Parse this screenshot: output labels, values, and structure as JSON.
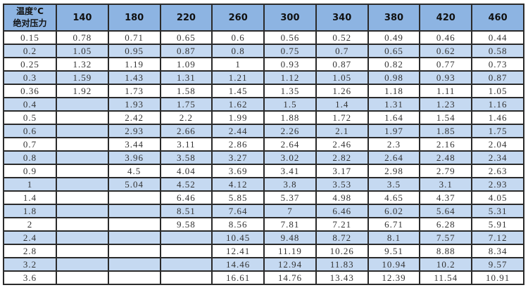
{
  "table": {
    "corner_label_line1": "温度°C",
    "corner_label_line2": "绝对压力",
    "columns": [
      "140",
      "180",
      "220",
      "260",
      "300",
      "340",
      "380",
      "420",
      "460"
    ],
    "header_color": "#8db4e2",
    "alt_row_color": "#c5d9f1",
    "rows": [
      {
        "pressure": "0.15",
        "values": [
          "0.78",
          "0.71",
          "0.65",
          "0.6",
          "0.56",
          "0.52",
          "0.49",
          "0.46",
          "0.44"
        ]
      },
      {
        "pressure": "0.2",
        "values": [
          "1.05",
          "0.95",
          "0.87",
          "0.8",
          "0.75",
          "0.7",
          "0.65",
          "0.62",
          "0.58"
        ]
      },
      {
        "pressure": "0.25",
        "values": [
          "1.32",
          "1.19",
          "1.09",
          "1",
          "0.93",
          "0.87",
          "0.82",
          "0.77",
          "0.73"
        ]
      },
      {
        "pressure": "0.3",
        "values": [
          "1.59",
          "1.43",
          "1.31",
          "1.21",
          "1.12",
          "1.05",
          "0.98",
          "0.93",
          "0.87"
        ]
      },
      {
        "pressure": "0.36",
        "values": [
          "1.92",
          "1.73",
          "1.58",
          "1.45",
          "1.35",
          "1.26",
          "1.18",
          "1.11",
          "1.05"
        ]
      },
      {
        "pressure": "0.4",
        "values": [
          "",
          "1.93",
          "1.75",
          "1.62",
          "1.5",
          "1.4",
          "1.31",
          "1.23",
          "1.16"
        ]
      },
      {
        "pressure": "0.5",
        "values": [
          "",
          "2.42",
          "2.2",
          "1.99",
          "1.88",
          "1.72",
          "1.64",
          "1.54",
          "1.46"
        ]
      },
      {
        "pressure": "0.6",
        "values": [
          "",
          "2.93",
          "2.66",
          "2.44",
          "2.26",
          "2.1",
          "1.97",
          "1.85",
          "1.75"
        ]
      },
      {
        "pressure": "0.7",
        "values": [
          "",
          "3.44",
          "3.11",
          "2.86",
          "2.64",
          "2.46",
          "2.3",
          "2.16",
          "2.04"
        ]
      },
      {
        "pressure": "0.8",
        "values": [
          "",
          "3.96",
          "3.58",
          "3.27",
          "3.02",
          "2.82",
          "2.64",
          "2.48",
          "2.34"
        ]
      },
      {
        "pressure": "0.9",
        "values": [
          "",
          "4.5",
          "4.04",
          "3.69",
          "3.41",
          "3.17",
          "2.98",
          "2.79",
          "2.63"
        ]
      },
      {
        "pressure": "1",
        "values": [
          "",
          "5.04",
          "4.52",
          "4.12",
          "3.8",
          "3.53",
          "3.5",
          "3.1",
          "2.93"
        ]
      },
      {
        "pressure": "1.4",
        "values": [
          "",
          "",
          "6.46",
          "5.85",
          "5.37",
          "4.98",
          "4.65",
          "4.37",
          "4.05"
        ]
      },
      {
        "pressure": "1.8",
        "values": [
          "",
          "",
          "8.51",
          "7.64",
          "7",
          "6.46",
          "6.02",
          "5.64",
          "5.31"
        ]
      },
      {
        "pressure": "2",
        "values": [
          "",
          "",
          "9.58",
          "8.56",
          "7.81",
          "7.21",
          "6.71",
          "6.28",
          "5.91"
        ]
      },
      {
        "pressure": "2.4",
        "values": [
          "",
          "",
          "",
          "10.45",
          "9.48",
          "8.72",
          "8.1",
          "7.57",
          "7.12"
        ]
      },
      {
        "pressure": "2.8",
        "values": [
          "",
          "",
          "",
          "12.41",
          "11.19",
          "10.26",
          "9.51",
          "8.88",
          "8.34"
        ]
      },
      {
        "pressure": "3.2",
        "values": [
          "",
          "",
          "",
          "14.46",
          "12.94",
          "11.83",
          "10.94",
          "10.2",
          "9.57"
        ]
      },
      {
        "pressure": "3.6",
        "values": [
          "",
          "",
          "",
          "16.61",
          "14.76",
          "13.43",
          "12.39",
          "11.54",
          "10.91"
        ]
      }
    ]
  }
}
